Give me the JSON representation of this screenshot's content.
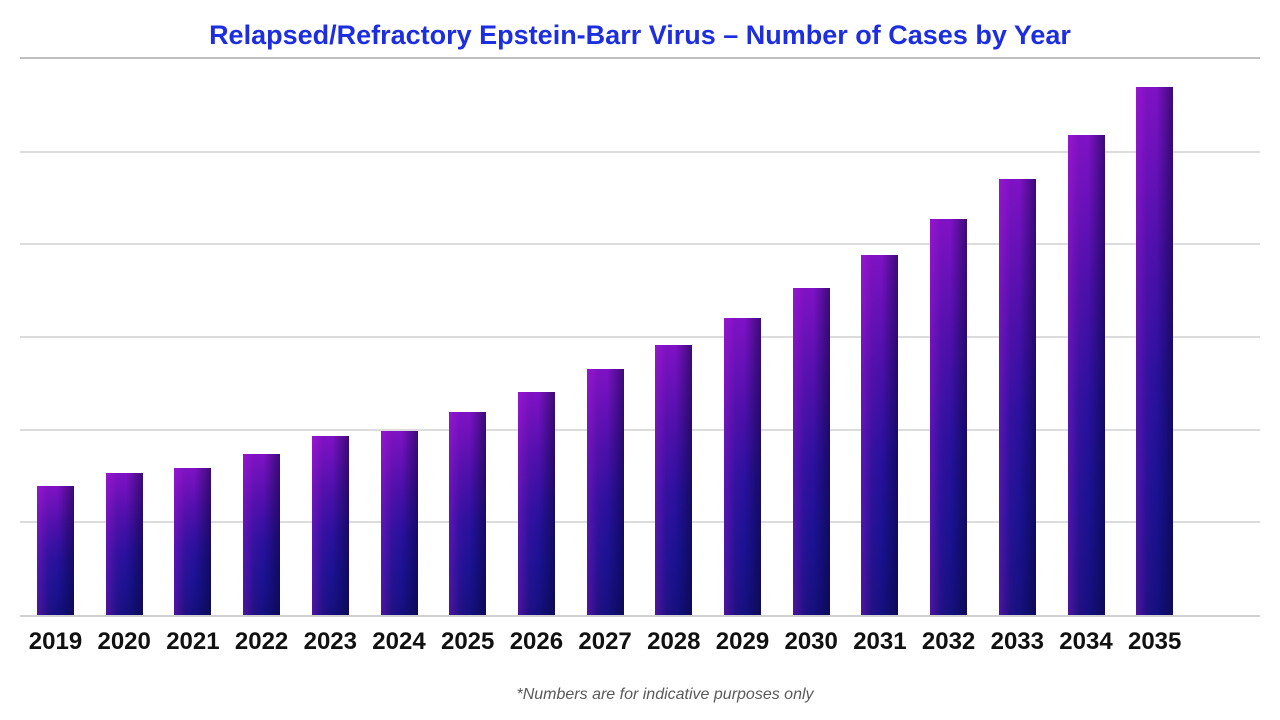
{
  "title": {
    "text": "Relapsed/Refractory Epstein-Barr Virus – Number of Cases by Year",
    "color": "#1c2ee0"
  },
  "footnote": {
    "text": "*Numbers are for indicative purposes only",
    "color": "#595959"
  },
  "chart_data": {
    "type": "bar",
    "title": "Relapsed/Refractory Epstein-Barr Virus – Number of Cases by Year",
    "categories": [
      "2019",
      "2020",
      "2021",
      "2022",
      "2023",
      "2024",
      "2025",
      "2026",
      "2027",
      "2028",
      "2029",
      "2030",
      "2031",
      "2032",
      "2033",
      "2034",
      "2035"
    ],
    "values": [
      23.2,
      25.6,
      26.4,
      29.0,
      32.2,
      33.1,
      36.5,
      40.1,
      44.2,
      48.6,
      53.4,
      58.8,
      64.7,
      71.2,
      78.4,
      86.3,
      95.0
    ],
    "xlabel": "",
    "ylabel": "",
    "ylim": [
      0,
      100
    ],
    "y_axis_tick_labels_visible": false,
    "gridlines": "horizontal, 6 equal intervals, light gray",
    "legend": "none",
    "value_note": "no numeric axis labels shown; values estimated as percent of plot height",
    "bar_gradient_colors": [
      "#8a12cd",
      "#4e10ac",
      "#2a119e",
      "#15107f",
      "#0c0a5c"
    ],
    "annotation": "*Numbers are for indicative purposes only"
  }
}
